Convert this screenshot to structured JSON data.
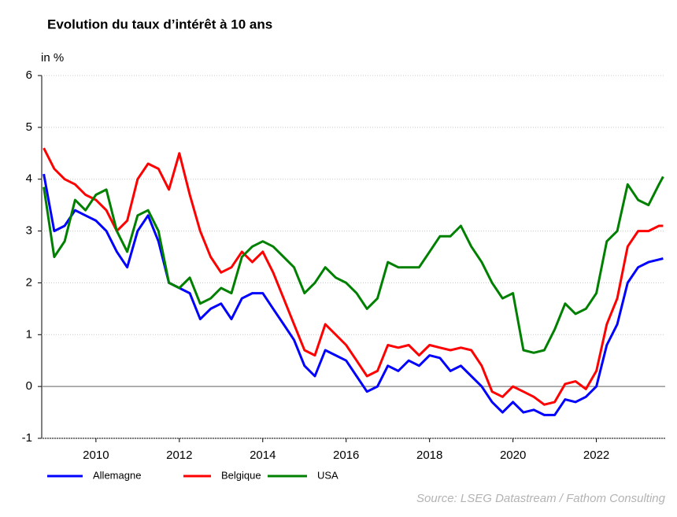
{
  "chart_data": {
    "type": "line",
    "title": "Evolution du taux d’intérêt à 10 ans",
    "y_label": "in %",
    "source": "Source: LSEG Datastream / Fathom Consulting",
    "x": [
      2008.75,
      2009,
      2009.25,
      2009.5,
      2009.75,
      2010,
      2010.25,
      2010.5,
      2010.75,
      2011,
      2011.25,
      2011.5,
      2011.75,
      2012,
      2012.25,
      2012.5,
      2012.75,
      2013,
      2013.25,
      2013.5,
      2013.75,
      2014,
      2014.25,
      2014.5,
      2014.75,
      2015,
      2015.25,
      2015.5,
      2015.75,
      2016,
      2016.25,
      2016.5,
      2016.75,
      2017,
      2017.25,
      2017.5,
      2017.75,
      2018,
      2018.25,
      2018.5,
      2018.75,
      2019,
      2019.25,
      2019.5,
      2019.75,
      2020,
      2020.25,
      2020.5,
      2020.75,
      2021,
      2021.25,
      2021.5,
      2021.75,
      2022,
      2022.25,
      2022.5,
      2022.75,
      2023,
      2023.25,
      2023.5,
      2023.6
    ],
    "series": [
      {
        "name": "Allemagne",
        "color": "#0000ff",
        "values": [
          4.1,
          3.0,
          3.1,
          3.4,
          3.3,
          3.2,
          3.0,
          2.6,
          2.3,
          3.0,
          3.3,
          2.8,
          2.0,
          1.9,
          1.8,
          1.3,
          1.5,
          1.6,
          1.3,
          1.7,
          1.8,
          1.8,
          1.5,
          1.2,
          0.9,
          0.4,
          0.2,
          0.7,
          0.6,
          0.5,
          0.2,
          -0.1,
          0.0,
          0.4,
          0.3,
          0.5,
          0.4,
          0.6,
          0.55,
          0.3,
          0.4,
          0.2,
          0.0,
          -0.3,
          -0.5,
          -0.3,
          -0.5,
          -0.45,
          -0.55,
          -0.55,
          -0.25,
          -0.3,
          -0.2,
          0.0,
          0.8,
          1.2,
          2.0,
          2.3,
          2.4,
          2.45,
          2.47
        ]
      },
      {
        "name": "Belgique",
        "color": "#ff0000",
        "values": [
          4.6,
          4.2,
          4.0,
          3.9,
          3.7,
          3.6,
          3.4,
          3.0,
          3.2,
          4.0,
          4.3,
          4.2,
          3.8,
          4.5,
          3.7,
          3.0,
          2.5,
          2.2,
          2.3,
          2.6,
          2.4,
          2.6,
          2.2,
          1.7,
          1.2,
          0.7,
          0.6,
          1.2,
          1.0,
          0.8,
          0.5,
          0.2,
          0.3,
          0.8,
          0.75,
          0.8,
          0.6,
          0.8,
          0.75,
          0.7,
          0.75,
          0.7,
          0.4,
          -0.1,
          -0.2,
          0.0,
          -0.1,
          -0.2,
          -0.35,
          -0.3,
          0.05,
          0.1,
          -0.05,
          0.3,
          1.2,
          1.7,
          2.7,
          3.0,
          3.0,
          3.1,
          3.1
        ]
      },
      {
        "name": "USA",
        "color": "#008000",
        "values": [
          3.85,
          2.5,
          2.8,
          3.6,
          3.4,
          3.7,
          3.8,
          3.0,
          2.6,
          3.3,
          3.4,
          3.0,
          2.0,
          1.9,
          2.1,
          1.6,
          1.7,
          1.9,
          1.8,
          2.5,
          2.7,
          2.8,
          2.7,
          2.5,
          2.3,
          1.8,
          2.0,
          2.3,
          2.1,
          2.0,
          1.8,
          1.5,
          1.7,
          2.4,
          2.3,
          2.3,
          2.3,
          2.6,
          2.9,
          2.9,
          3.1,
          2.7,
          2.4,
          2.0,
          1.7,
          1.8,
          0.7,
          0.65,
          0.7,
          1.1,
          1.6,
          1.4,
          1.5,
          1.8,
          2.8,
          3.0,
          3.9,
          3.6,
          3.5,
          3.9,
          4.05
        ]
      }
    ],
    "xlim": [
      2008.7,
      2023.65
    ],
    "xticks": [
      2010,
      2012,
      2014,
      2016,
      2018,
      2020,
      2022
    ],
    "ylim": [
      -1,
      6
    ],
    "yticks": [
      -1,
      0,
      1,
      2,
      3,
      4,
      5,
      6
    ],
    "grid": true
  }
}
